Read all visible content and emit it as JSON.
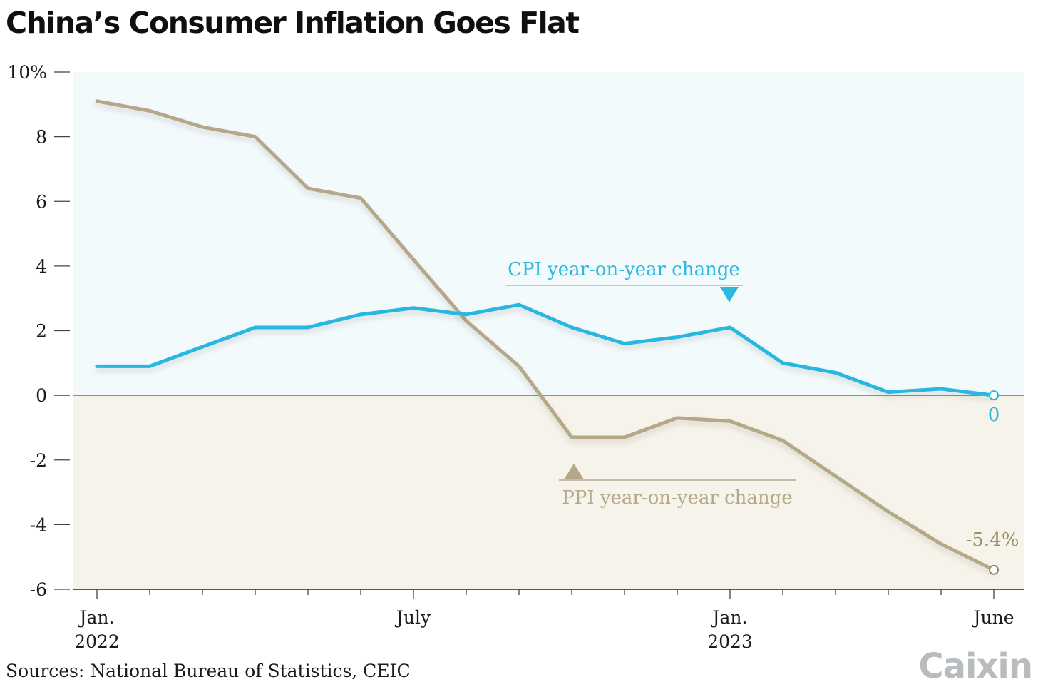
{
  "header": {
    "title": "China’s Consumer Inflation Goes Flat"
  },
  "footer": {
    "source": "Sources: National Bureau of Statistics, CEIC",
    "logo": "Caixin"
  },
  "colors": {
    "cpi": "#2cb7df",
    "ppi": "#b5a888",
    "positive_band": "#f3fafc",
    "negative_band": "#f6f4ea",
    "ppi_label": "#b5a888",
    "ppi_end_label": "#9c8f6c"
  },
  "chart_data": {
    "type": "line",
    "title": "China’s Consumer Inflation Goes Flat",
    "x": [
      "2022-01",
      "2022-02",
      "2022-03",
      "2022-04",
      "2022-05",
      "2022-06",
      "2022-07",
      "2022-08",
      "2022-09",
      "2022-10",
      "2022-11",
      "2022-12",
      "2023-01",
      "2023-02",
      "2023-03",
      "2023-04",
      "2023-05",
      "2023-06"
    ],
    "xtick_labels": [
      {
        "lines": [
          "Jan.",
          "2022"
        ]
      },
      {
        "lines": [
          "July"
        ]
      },
      {
        "lines": [
          "Jan.",
          "2023"
        ]
      },
      {
        "lines": [
          "June"
        ]
      }
    ],
    "ytick_labels": [
      "10%",
      "8",
      "6",
      "4",
      "2",
      "0",
      "-2",
      "-4",
      "-6"
    ],
    "ylim": [
      -6,
      10
    ],
    "series": [
      {
        "name": "CPI year-on-year change",
        "values": [
          0.9,
          0.9,
          1.5,
          2.1,
          2.1,
          2.5,
          2.7,
          2.5,
          2.8,
          2.1,
          1.6,
          1.8,
          2.1,
          1.0,
          0.7,
          0.1,
          0.2,
          0.0
        ],
        "end_label": "0"
      },
      {
        "name": "PPI year-on-year change",
        "values": [
          9.1,
          8.8,
          8.3,
          8.0,
          6.4,
          6.1,
          4.2,
          2.3,
          0.9,
          -1.3,
          -1.3,
          -0.7,
          -0.8,
          -1.4,
          -2.5,
          -3.6,
          -4.6,
          -5.4
        ],
        "end_label": "-5.4%"
      }
    ],
    "grid": false,
    "background_bands": "light blue above 0, light beige below 0"
  }
}
